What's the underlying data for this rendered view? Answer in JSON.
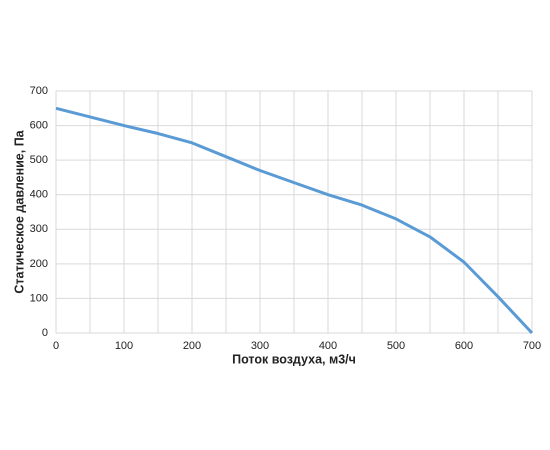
{
  "chart_data": {
    "type": "line",
    "x_label": "Поток воздуха, м3/ч",
    "y_label": "Статическое давление, Па",
    "x": [
      0,
      50,
      100,
      150,
      200,
      250,
      300,
      350,
      400,
      450,
      500,
      550,
      600,
      650,
      700
    ],
    "series": [
      {
        "name": "Статическое давление",
        "color": "#5b9bd5",
        "values": [
          650,
          625,
          600,
          577,
          550,
          510,
          470,
          435,
          400,
          370,
          330,
          278,
          205,
          105,
          0
        ]
      }
    ],
    "xlim": [
      0,
      700
    ],
    "xticks": [
      0,
      100,
      200,
      300,
      400,
      500,
      600,
      700
    ],
    "xminor": [
      50,
      150,
      250,
      350,
      450,
      550,
      650
    ],
    "ylim": [
      0,
      700
    ],
    "yticks": [
      0,
      100,
      200,
      300,
      400,
      500,
      600,
      700
    ],
    "grid": true,
    "legend": false
  }
}
